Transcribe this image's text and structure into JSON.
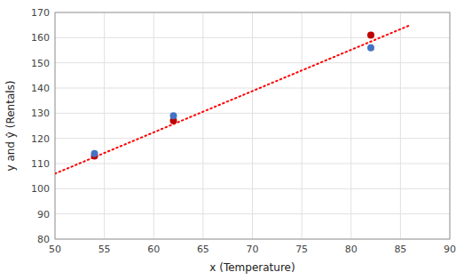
{
  "chart_data": {
    "type": "scatter",
    "xlabel": "x (Temperature)",
    "ylabel": "y and ŷ (Rentals)",
    "xlim": [
      50,
      90
    ],
    "ylim": [
      80,
      170
    ],
    "xticks": [
      50,
      55,
      60,
      65,
      70,
      75,
      80,
      85,
      90
    ],
    "yticks": [
      80,
      90,
      100,
      110,
      120,
      130,
      140,
      150,
      160,
      170
    ],
    "grid": true,
    "series": [
      {
        "type": "line",
        "color": "#FF0000",
        "line_style": "dotted",
        "x": [
          50,
          86
        ],
        "values": [
          106,
          165
        ]
      },
      {
        "type": "scatter",
        "color": "#C00000",
        "x": [
          54,
          62,
          82
        ],
        "values": [
          113,
          127,
          161
        ]
      },
      {
        "type": "scatter",
        "color": "#4472C4",
        "x": [
          54,
          62,
          82
        ],
        "values": [
          114,
          129,
          156
        ]
      }
    ]
  }
}
